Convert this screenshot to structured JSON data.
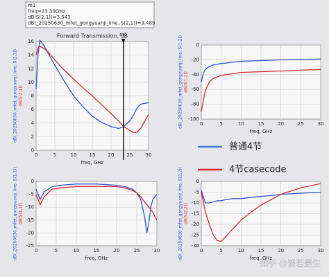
{
  "chart_data": [
    {
      "type": "line",
      "title": "Forward Transmission, dB",
      "xlabel": "freq, GHz",
      "x": [
        0,
        0.5,
        1,
        2,
        3,
        5,
        7.5,
        10,
        12.5,
        15,
        17.5,
        20,
        22,
        23.3,
        25,
        26,
        27,
        28,
        29,
        30
      ],
      "series": [
        {
          "name": "dB(_20250630_mfet_gongyuanji_line..S(2,1))",
          "color": "#2b50d6",
          "values": [
            9,
            14,
            16.2,
            15.5,
            14.5,
            12.5,
            10.2,
            8,
            6.4,
            5.0,
            4.1,
            3.5,
            3.2,
            3.49,
            4.3,
            5.2,
            6.3,
            6.8,
            6.9,
            7
          ]
        },
        {
          "name": "dB(S(2,1))",
          "color": "#d42a2a",
          "values": [
            14,
            15,
            15.3,
            15,
            14.6,
            13.3,
            11.8,
            10.5,
            9.2,
            8,
            6.7,
            5.4,
            4.3,
            3.54,
            2.9,
            2.6,
            2.7,
            3.3,
            4.3,
            5.3
          ]
        }
      ],
      "xlim": [
        0,
        30
      ],
      "xticks": [
        0,
        5,
        10,
        15,
        20,
        25,
        30
      ],
      "ylim": [
        0,
        16
      ],
      "yticks": [
        0,
        2,
        4,
        6,
        8,
        10,
        12,
        14,
        16
      ],
      "grid": true,
      "marker": {
        "x": 23.3,
        "label": "m1",
        "readout": [
          "m1",
          "freq=23.30GHz",
          "dB(S(2,1))=3.543",
          "dB(_20250630_mfet_gongyuanji_line..S(2,1))=3.489"
        ]
      }
    },
    {
      "type": "line",
      "xlabel": "freq, GHz",
      "x": [
        0,
        0.5,
        1,
        2,
        3,
        5,
        10,
        15,
        20,
        25,
        30
      ],
      "series": [
        {
          "name": "dB(_20250630_mfet_gongyuanji_line..S(1,2))",
          "color": "#2b50d6",
          "values": [
            -50,
            -38,
            -33,
            -29,
            -27,
            -25,
            -22,
            -21,
            -20,
            -19.5,
            -19
          ]
        },
        {
          "name": "dB(S(1,2))",
          "color": "#d42a2a",
          "values": [
            -90,
            -75,
            -62,
            -50,
            -45,
            -41,
            -37,
            -36,
            -35,
            -34,
            -33
          ]
        }
      ],
      "xlim": [
        0,
        30
      ],
      "xticks": [
        0,
        5,
        10,
        15,
        20,
        25,
        30
      ],
      "ylim": [
        -100,
        0
      ],
      "yticks": [
        -100,
        -80,
        -60,
        -40,
        -20,
        0
      ],
      "grid": true
    },
    {
      "type": "line",
      "xlabel": "freq, GHz",
      "x": [
        0,
        1,
        2,
        4,
        6,
        10,
        15,
        20,
        22,
        24,
        25,
        26,
        27,
        27.5,
        28,
        28.5,
        29,
        30
      ],
      "series": [
        {
          "name": "dB(_20250630_mfet_gongyuanji_line..S(1,1))",
          "color": "#2b50d6",
          "values": [
            -3,
            -7,
            -4,
            -2,
            -1.5,
            -1,
            -1,
            -1.5,
            -2,
            -3,
            -4.5,
            -7,
            -14,
            -20,
            -16,
            -10,
            -7,
            -5
          ]
        },
        {
          "name": "dB(S(1,1))",
          "color": "#d42a2a",
          "values": [
            -5,
            -9,
            -6,
            -3,
            -2.5,
            -2,
            -2,
            -2,
            -2.5,
            -3.5,
            -4.5,
            -6,
            -8,
            -9,
            -10,
            -11,
            -12,
            -15
          ]
        }
      ],
      "xlim": [
        0,
        30
      ],
      "xticks": [
        0,
        5,
        10,
        15,
        20,
        25,
        30
      ],
      "ylim": [
        -25,
        0
      ],
      "yticks": [
        -25,
        -20,
        -15,
        -10,
        -5,
        0
      ],
      "grid": true
    },
    {
      "type": "line",
      "xlabel": "freq, GHz",
      "x": [
        0,
        1,
        2,
        3,
        4,
        5,
        6,
        8,
        10,
        12,
        15,
        18,
        20,
        25,
        30
      ],
      "series": [
        {
          "name": "dB(_20250630_mfet_gongyuanji_line..S(2,2))",
          "color": "#2b50d6",
          "values": [
            -4,
            -10,
            -10,
            -9.5,
            -9,
            -9,
            -8.5,
            -8,
            -8,
            -7.5,
            -7,
            -6.5,
            -6,
            -5.5,
            -5
          ]
        },
        {
          "name": "dB(S(2,2))",
          "color": "#d42a2a",
          "values": [
            -5,
            -14,
            -20,
            -25,
            -27.5,
            -28,
            -26,
            -22,
            -18,
            -15,
            -11,
            -8,
            -6,
            -3,
            -1
          ]
        }
      ],
      "xlim": [
        0,
        30
      ],
      "xticks": [
        0,
        5,
        10,
        15,
        20,
        25,
        30
      ],
      "ylim": [
        -30,
        0
      ],
      "yticks": [
        -30,
        -25,
        -20,
        -15,
        -10,
        -5,
        0
      ],
      "grid": true
    }
  ],
  "legend": [
    {
      "name": "普通4节",
      "color": "#3a7fd8"
    },
    {
      "name": "4节casecode",
      "color": "#d42a2a"
    }
  ],
  "watermark": "知乎 @淡若是生"
}
